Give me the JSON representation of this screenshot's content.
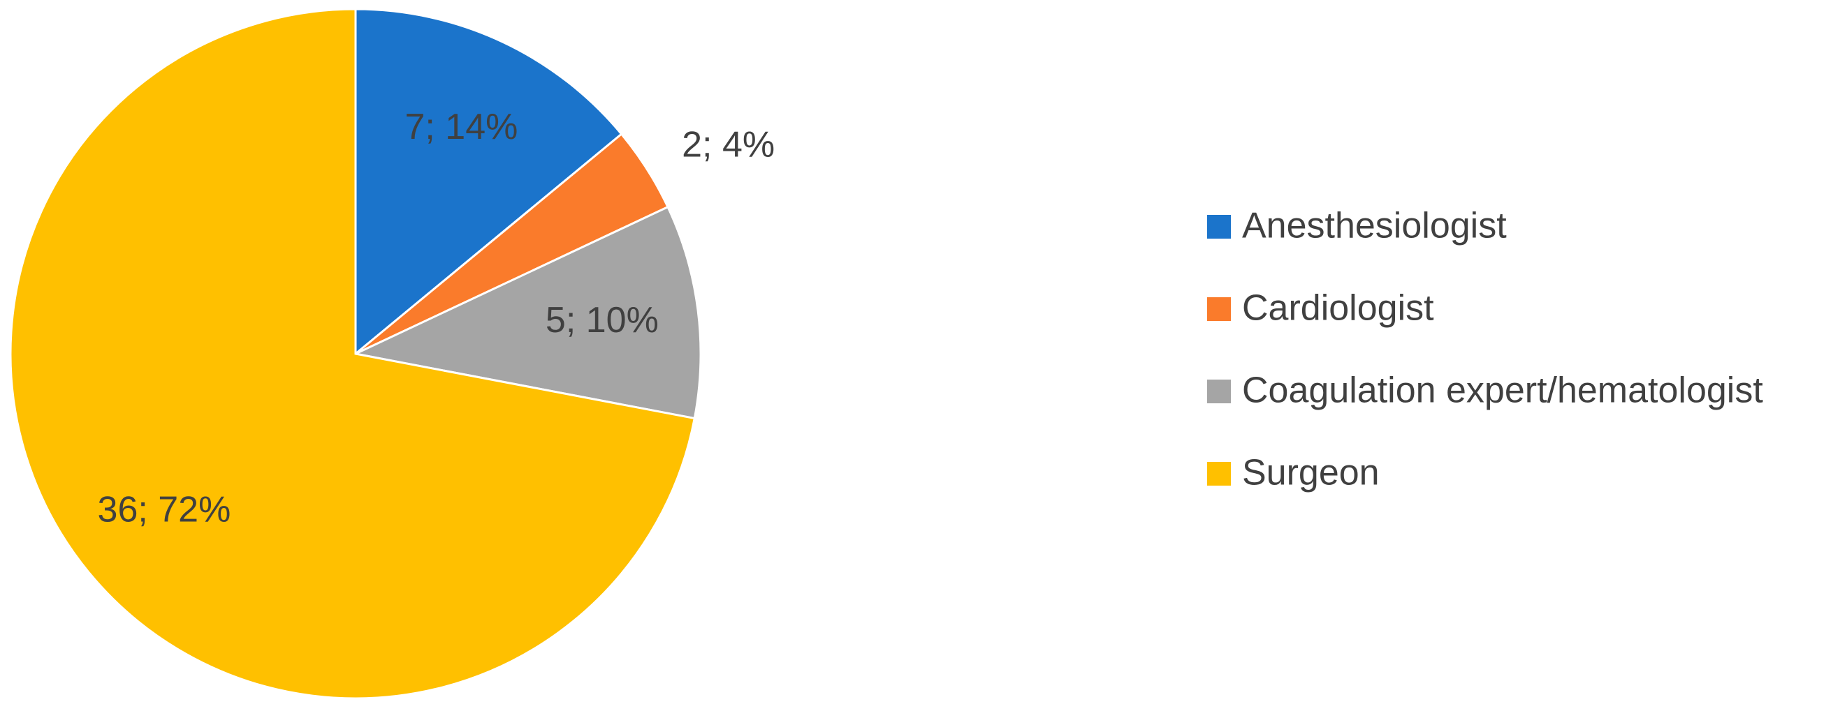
{
  "chart_data": {
    "type": "pie",
    "categories": [
      "Anesthesiologist",
      "Cardiologist",
      "Coagulation expert/hematologist",
      "Surgeon"
    ],
    "values": [
      7,
      2,
      5,
      36
    ],
    "value_labels": [
      "7; 14%",
      "2; 4%",
      "5; 10%",
      "36; 72%"
    ],
    "colors": [
      "#1b74cb",
      "#fa7b2b",
      "#a5a5a5",
      "#ffc000"
    ],
    "legend": "right"
  }
}
